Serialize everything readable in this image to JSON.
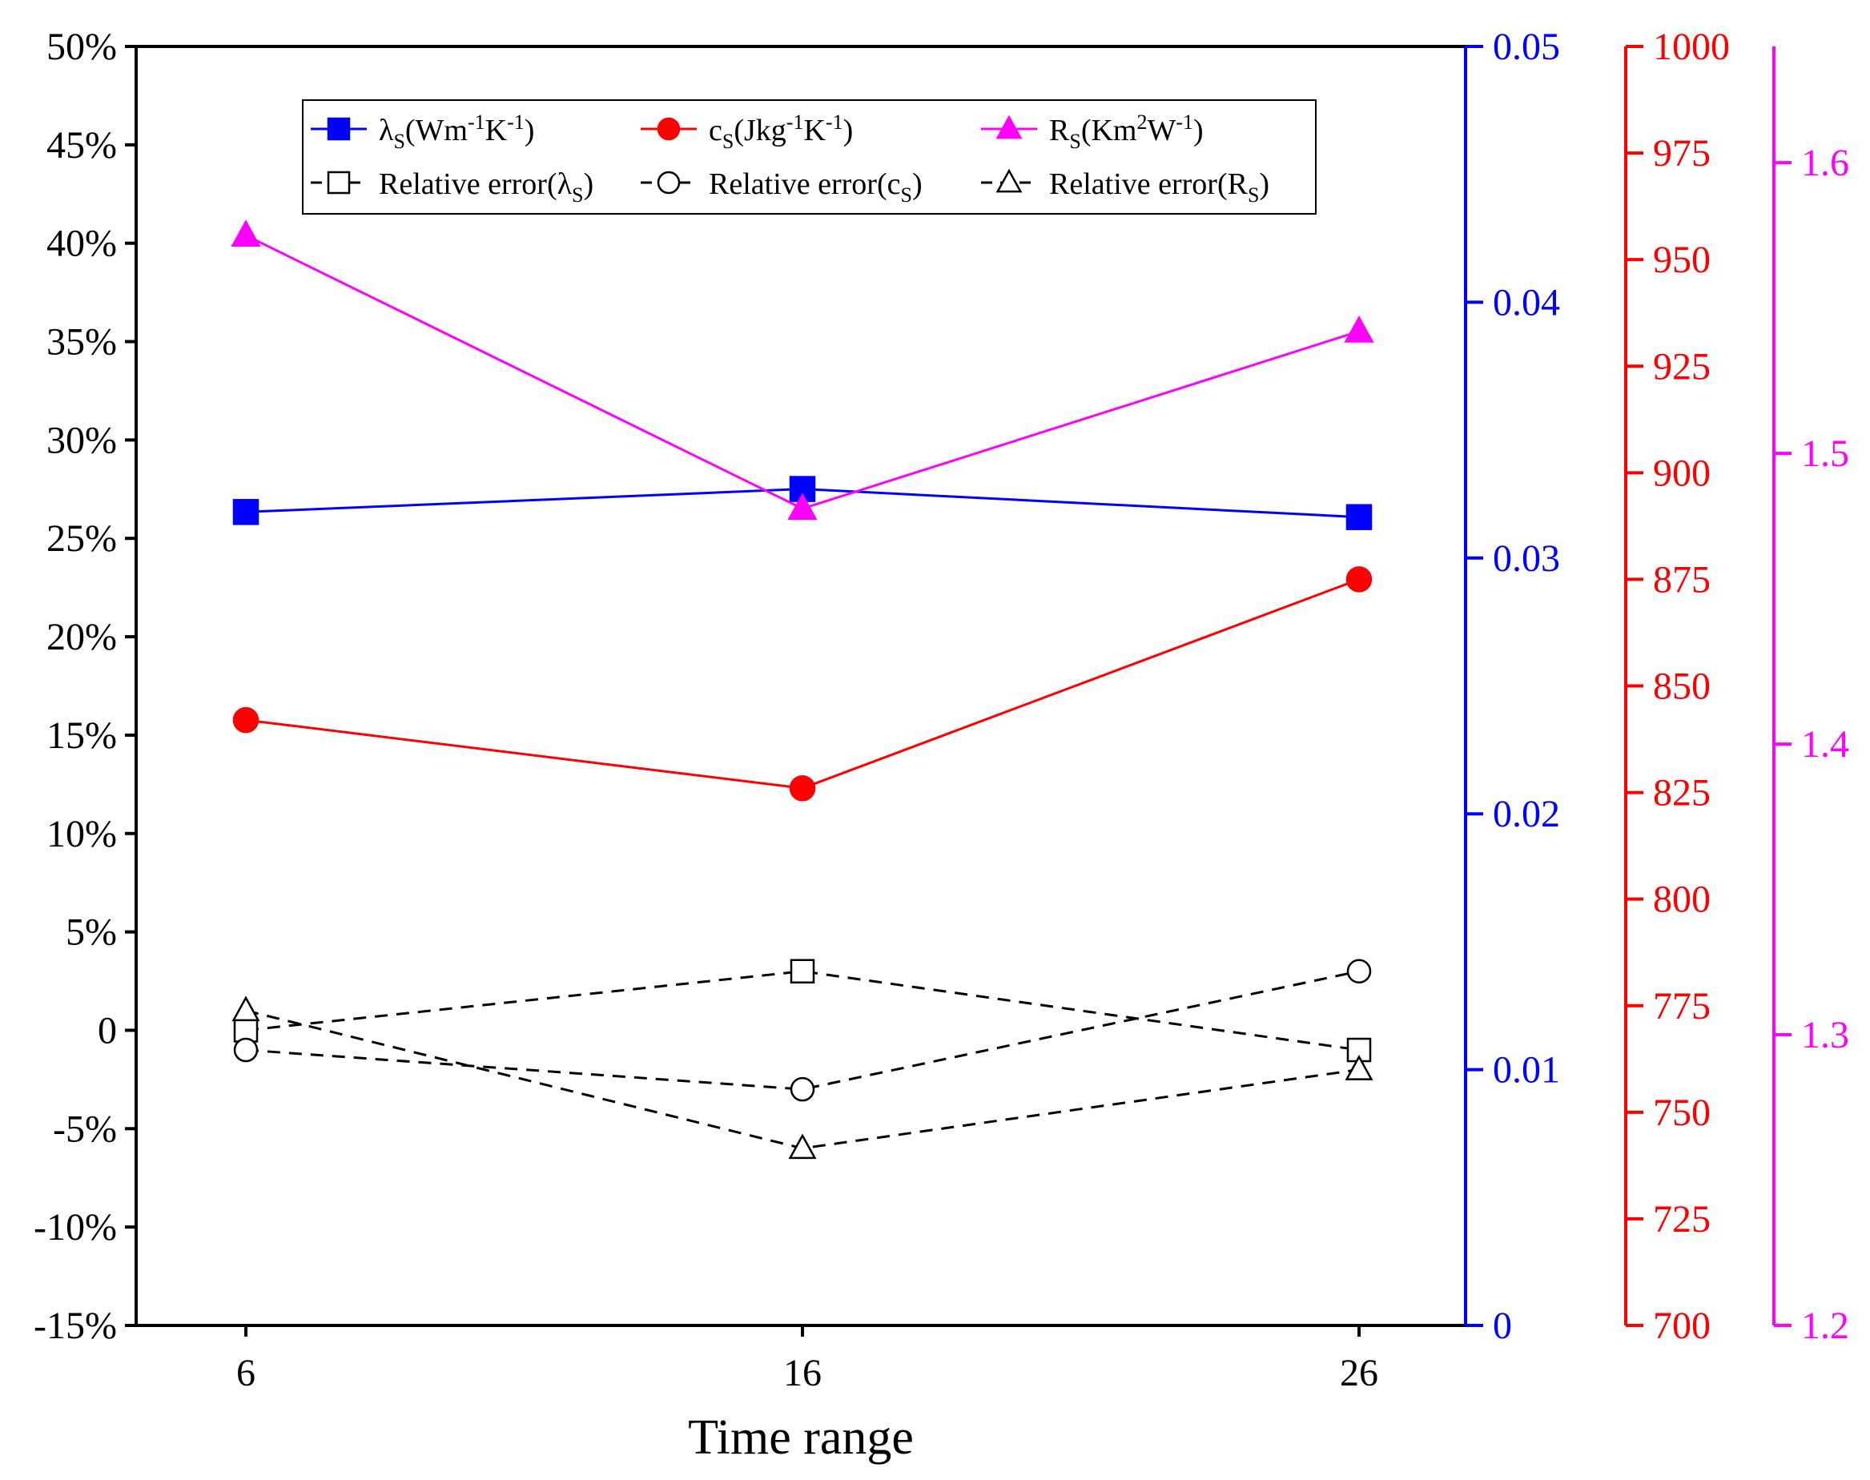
{
  "chart_data": {
    "type": "line",
    "xlabel": "Time range",
    "x": [
      6,
      16,
      26
    ],
    "x_tick_labels": [
      "6",
      "16",
      "26"
    ],
    "axes": {
      "left": {
        "name": "relative-error",
        "range": [
          -15,
          50
        ],
        "ticks": [
          -15,
          -10,
          -5,
          0,
          5,
          10,
          15,
          20,
          25,
          30,
          35,
          40,
          45,
          50
        ],
        "tick_labels": [
          "-15%",
          "-10%",
          "-5%",
          "0",
          "5%",
          "10%",
          "15%",
          "20%",
          "25%",
          "30%",
          "35%",
          "40%",
          "45%",
          "50%"
        ],
        "color": "#000000"
      },
      "right1": {
        "name": "lambda",
        "range": [
          0,
          0.05
        ],
        "ticks": [
          0,
          0.01,
          0.02,
          0.03,
          0.04,
          0.05
        ],
        "tick_labels": [
          "0",
          "0.01",
          "0.02",
          "0.03",
          "0.04",
          "0.05"
        ],
        "color": "#0000ff"
      },
      "right2": {
        "name": "c",
        "range": [
          700,
          1000
        ],
        "ticks": [
          700,
          725,
          750,
          775,
          800,
          825,
          850,
          875,
          900,
          925,
          950,
          975,
          1000
        ],
        "tick_labels": [
          "700",
          "725",
          "750",
          "775",
          "800",
          "825",
          "850",
          "875",
          "900",
          "925",
          "950",
          "975",
          "1000"
        ],
        "color": "#ff0000"
      },
      "right3": {
        "name": "R",
        "range": [
          1.2,
          1.64
        ],
        "ticks": [
          1.2,
          1.3,
          1.4,
          1.5,
          1.6
        ],
        "tick_labels": [
          "1.2",
          "1.3",
          "1.4",
          "1.5",
          "1.6"
        ],
        "color": "#ff00ff"
      }
    },
    "series": [
      {
        "name": "λS(Wm-1K-1)",
        "axis": "right1",
        "values": [
          0.0318,
          0.0327,
          0.0316
        ],
        "color": "#0000ff",
        "marker": "square-filled",
        "style": "solid"
      },
      {
        "name": "cS(Jkg-1K-1)",
        "axis": "right2",
        "values": [
          842,
          826,
          875
        ],
        "color": "#ff0000",
        "marker": "circle-filled",
        "style": "solid"
      },
      {
        "name": "RS(Km2W-1)",
        "axis": "right3",
        "values": [
          1.575,
          1.481,
          1.542
        ],
        "color": "#ff00ff",
        "marker": "triangle-filled",
        "style": "solid"
      },
      {
        "name": "Relative error(λS)",
        "axis": "left",
        "values": [
          0,
          3,
          -1
        ],
        "color": "#000000",
        "marker": "square-open",
        "style": "dashed"
      },
      {
        "name": "Relative error(cS)",
        "axis": "left",
        "values": [
          -1,
          -3,
          3
        ],
        "color": "#000000",
        "marker": "circle-open",
        "style": "dashed"
      },
      {
        "name": "Relative error(RS)",
        "axis": "left",
        "values": [
          1,
          -6,
          -2
        ],
        "color": "#000000",
        "marker": "triangle-open",
        "style": "dashed"
      }
    ],
    "legend": {
      "placement": "top-center",
      "entries": [
        {
          "main": "λ",
          "sub": "S",
          "rest": "(Wm",
          "sup1": "-1",
          "mid": "K",
          "sup2": "-1",
          "end": ")"
        },
        {
          "main": "c",
          "sub": "S",
          "rest": "(Jkg",
          "sup1": "-1",
          "mid": "K",
          "sup2": "-1",
          "end": ")"
        },
        {
          "main": "R",
          "sub": "S",
          "rest": "(Km",
          "sup1": "2",
          "mid": "W",
          "sup2": "-1",
          "end": ")"
        },
        {
          "main": "Relative error(λ",
          "sub": "S",
          "end": ")"
        },
        {
          "main": "Relative error(c",
          "sub": "S",
          "end": ")"
        },
        {
          "main": "Relative error(R",
          "sub": "S",
          "end": ")"
        }
      ]
    }
  }
}
